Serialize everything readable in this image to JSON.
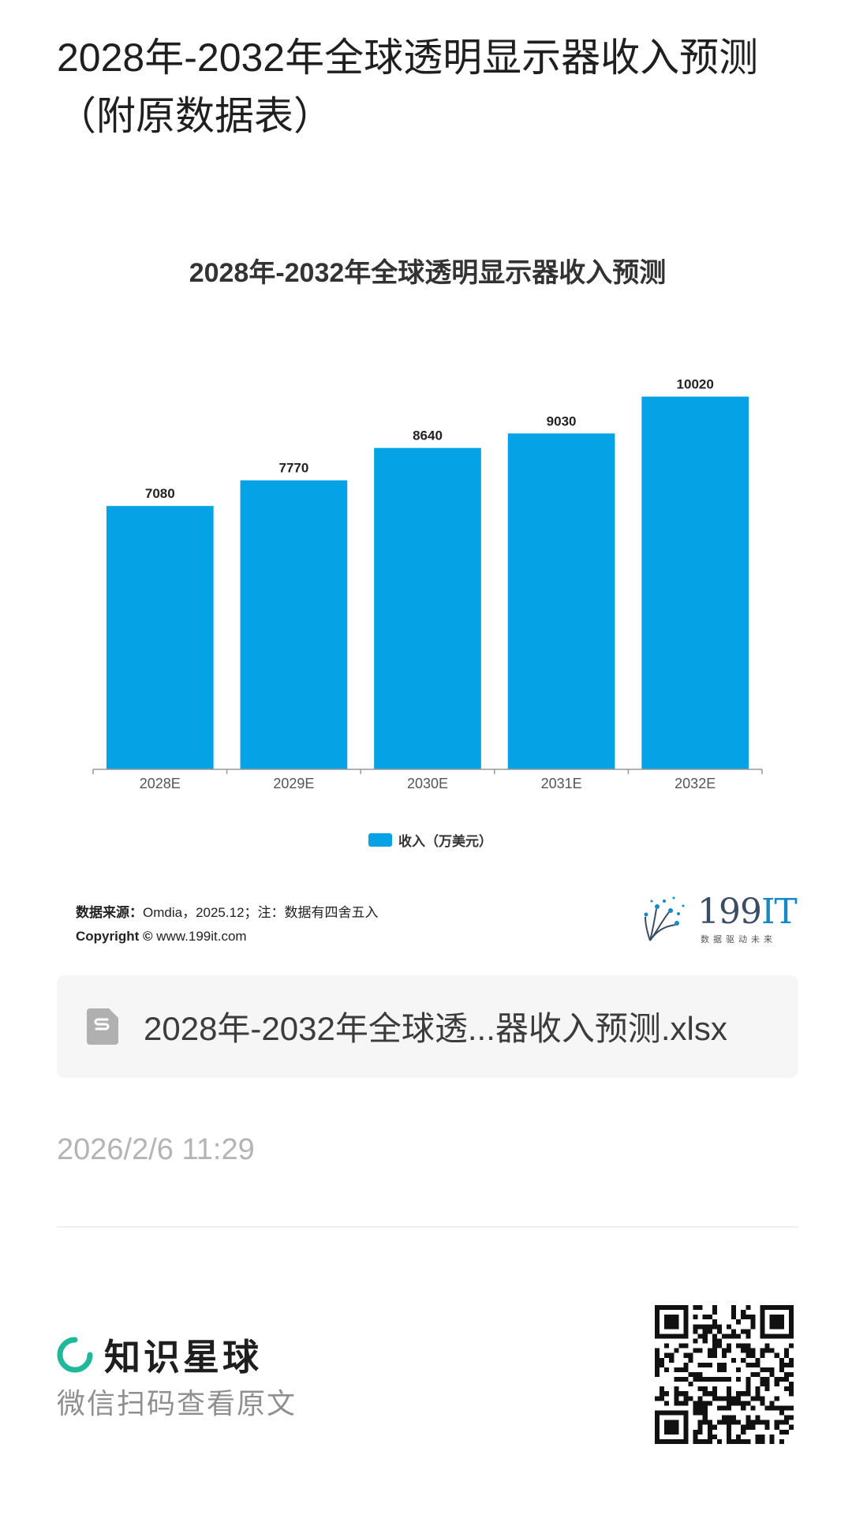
{
  "page": {
    "title": "2028年-2032年全球透明显示器收入预测（附原数据表）"
  },
  "chart_data": {
    "type": "bar",
    "title": "2028年-2032年全球透明显示器收入预测",
    "categories": [
      "2028E",
      "2029E",
      "2030E",
      "2031E",
      "2032E"
    ],
    "series": [
      {
        "name": "收入（万美元）",
        "values": [
          7080,
          7770,
          8640,
          9030,
          10020
        ],
        "color": "#05a2e5"
      }
    ],
    "ylim": [
      0,
      10500
    ],
    "legend_position": "bottom",
    "grid": false,
    "show_value_labels": true
  },
  "source": {
    "label": "数据来源：",
    "text": "Omdia，2025.12；注：数据有四舍五入",
    "copyright_label": "Copyright ©",
    "copyright_site": " www.199it.com"
  },
  "brand": {
    "name_num": "199",
    "name_it": "IT",
    "tagline": "数据驱动未来"
  },
  "attachment": {
    "file_name": "2028年-2032年全球透...器收入预测.xlsx",
    "icon": "spreadsheet-file-icon"
  },
  "timestamp": "2026/2/6 11:29",
  "footer": {
    "platform_name": "知识星球",
    "hint": "微信扫码查看原文",
    "icon": "planet-logo-icon"
  },
  "colors": {
    "bar": "#05a2e5",
    "brand_green": "#1fb89a"
  }
}
